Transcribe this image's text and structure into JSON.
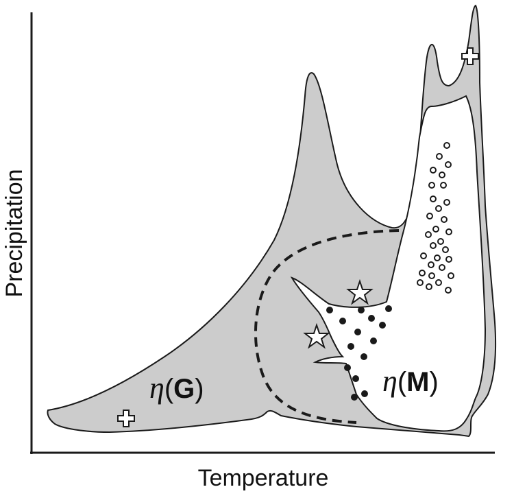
{
  "axes": {
    "x_label": "Temperature",
    "y_label": "Precipitation"
  },
  "regions": {
    "g": {
      "symbol": "η",
      "open_paren": "(",
      "letter": "G",
      "close_paren": ")"
    },
    "m": {
      "symbol": "η",
      "open_paren": "(",
      "letter": "M",
      "close_paren": ")"
    }
  },
  "colors": {
    "gray_region": "#cccccc",
    "outline": "#1a1a1a",
    "background": "#ffffff"
  },
  "markers": {
    "star_icon": "star-icon",
    "cross_icon": "cross-icon",
    "filled_dot": "filled-circle",
    "open_dot": "open-circle"
  }
}
